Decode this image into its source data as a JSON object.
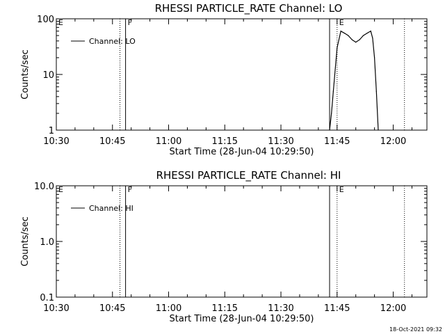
{
  "timestamp": "18-Oct-2021 09:32",
  "chart_data": [
    {
      "type": "line",
      "title": "RHESSI PARTICLE_RATE Channel: LO",
      "xlabel": "Start Time (28-Jun-04 10:29:50)",
      "ylabel": "Counts/sec",
      "yscale": "log",
      "xlim": [
        "10:30",
        "12:09"
      ],
      "ylim": [
        1,
        100
      ],
      "xticks": [
        "10:30",
        "10:45",
        "11:00",
        "11:15",
        "11:30",
        "11:45",
        "12:00"
      ],
      "yticks": [
        "1",
        "10",
        "100"
      ],
      "legend": {
        "placement": "top-left",
        "label": "Channel: LO"
      },
      "series": [
        {
          "name": "Channel: LO",
          "x": [
            "11:43",
            "11:43.5",
            "11:44",
            "11:45",
            "11:46",
            "11:47",
            "11:48",
            "11:49",
            "11:50",
            "11:51",
            "11:52",
            "11:53",
            "11:54",
            "11:54.5",
            "11:55",
            "11:55.5",
            "11:56"
          ],
          "y": [
            1,
            2,
            5,
            30,
            60,
            55,
            50,
            42,
            38,
            42,
            50,
            55,
            60,
            45,
            20,
            5,
            1
          ]
        }
      ],
      "markers": [
        {
          "label": "E",
          "time": "10:30",
          "style": "dotted"
        },
        {
          "label": "",
          "time": "10:47",
          "style": "dotted"
        },
        {
          "label": "F",
          "time": "10:48.5",
          "style": "solid"
        },
        {
          "label": "",
          "time": "11:43",
          "style": "solid"
        },
        {
          "label": "E",
          "time": "11:45",
          "style": "dotted"
        },
        {
          "label": "",
          "time": "12:03",
          "style": "dotted"
        }
      ]
    },
    {
      "type": "line",
      "title": "RHESSI PARTICLE_RATE Channel: HI",
      "xlabel": "Start Time (28-Jun-04 10:29:50)",
      "ylabel": "Counts/sec",
      "yscale": "log",
      "xlim": [
        "10:30",
        "12:09"
      ],
      "ylim": [
        0.1,
        10.0
      ],
      "xticks": [
        "10:30",
        "10:45",
        "11:00",
        "11:15",
        "11:30",
        "11:45",
        "12:00"
      ],
      "yticks": [
        "0.1",
        "1.0",
        "10.0"
      ],
      "legend": {
        "placement": "top-left",
        "label": "Channel: HI"
      },
      "series": [
        {
          "name": "Channel: HI",
          "x": [],
          "y": []
        }
      ],
      "markers": [
        {
          "label": "E",
          "time": "10:30",
          "style": "dotted"
        },
        {
          "label": "",
          "time": "10:47",
          "style": "dotted"
        },
        {
          "label": "F",
          "time": "10:48.5",
          "style": "solid"
        },
        {
          "label": "",
          "time": "11:43",
          "style": "solid"
        },
        {
          "label": "E",
          "time": "11:45",
          "style": "dotted"
        },
        {
          "label": "",
          "time": "12:03",
          "style": "dotted"
        }
      ]
    }
  ]
}
